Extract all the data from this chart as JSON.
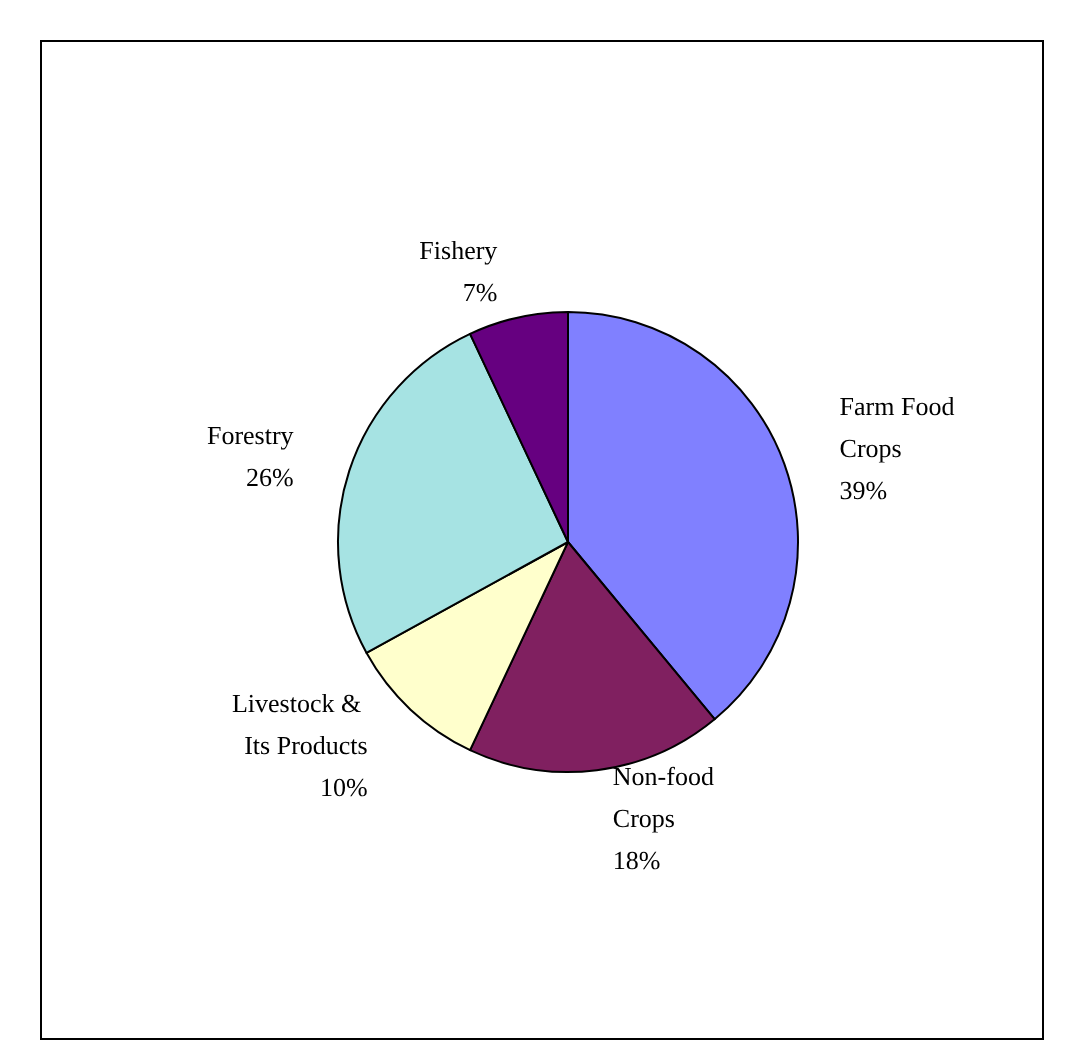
{
  "chart_data": {
    "type": "pie",
    "categories": [
      "Farm Food Crops",
      "Non-food Crops",
      "Livestock & Its Products",
      "Forestry",
      "Fishery"
    ],
    "values": [
      39,
      18,
      10,
      26,
      7
    ],
    "colors": [
      "#8080ff",
      "#802060",
      "#ffffcc",
      "#a6e3e3",
      "#660080"
    ],
    "value_labels": [
      "39%",
      "18%",
      "10%",
      "26%",
      "7%"
    ],
    "legend": false
  }
}
